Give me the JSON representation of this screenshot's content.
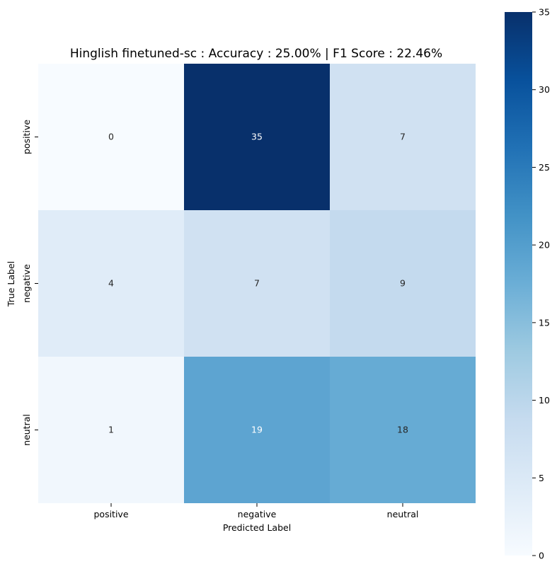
{
  "chart_data": {
    "type": "heatmap",
    "title": "Hinglish finetuned-sc : Accuracy : 25.00% | F1 Score : 22.46%",
    "xlabel": "Predicted Label",
    "ylabel": "True Label",
    "x_categories": [
      "positive",
      "negative",
      "neutral"
    ],
    "y_categories": [
      "positive",
      "negative",
      "neutral"
    ],
    "matrix": [
      [
        0,
        35,
        7
      ],
      [
        4,
        7,
        9
      ],
      [
        1,
        19,
        18
      ]
    ],
    "colormap": "Blues",
    "colorbar": {
      "vmin": 0,
      "vmax": 35,
      "ticks": [
        0,
        5,
        10,
        15,
        20,
        25,
        30,
        35
      ]
    }
  }
}
